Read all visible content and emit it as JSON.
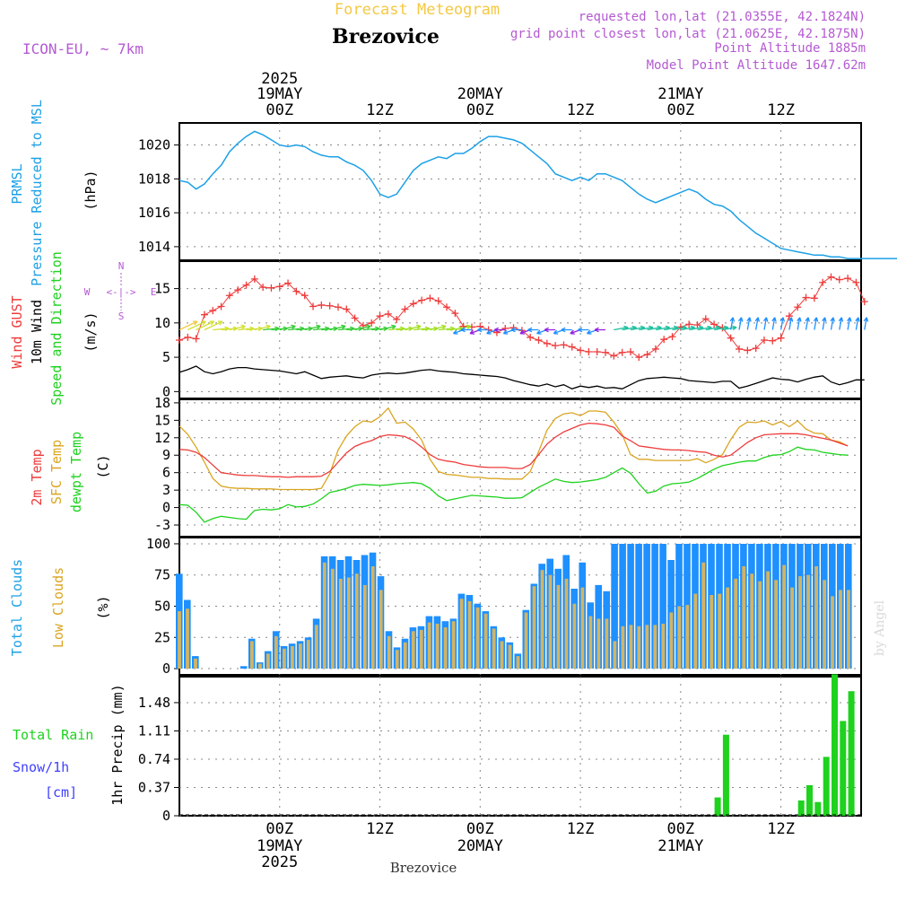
{
  "header": {
    "title": "Forecast Meteogram",
    "location": "Brezovice",
    "model": "ICON-EU, ~ 7km",
    "requested": "requested lon,lat (21.0355E, 42.1824N)",
    "gridpoint": "grid point closest lon,lat (21.0625E, 42.1875N)",
    "point_alt": "Point Altitude 1885m",
    "model_alt": "Model Point Altitude 1647.62m",
    "footer_location": "Brezovice",
    "watermark": "by Angel"
  },
  "colors": {
    "pressure": "#1ca0e6",
    "gust": "#ee3b3b",
    "wind": "#000000",
    "t2m": "#ee3b3b",
    "sfc": "#daa520",
    "dewpt": "#1ed21e",
    "total_clouds": "#1e90ff",
    "low_clouds": "#d2b464",
    "rain": "#1ed21e",
    "snow": "#4040ff",
    "label_purple": "#b45ad2"
  },
  "time_axis": {
    "top": [
      {
        "line1": "2025",
        "line2": "19MAY",
        "line3": "00Z",
        "h": 18
      },
      {
        "line1": "",
        "line2": "",
        "line3": "12Z",
        "h": 30
      },
      {
        "line1": "",
        "line2": "20MAY",
        "line3": "00Z",
        "h": 42
      },
      {
        "line1": "",
        "line2": "",
        "line3": "12Z",
        "h": 54
      },
      {
        "line1": "",
        "line2": "21MAY",
        "line3": "00Z",
        "h": 66
      },
      {
        "line1": "",
        "line2": "",
        "line3": "12Z",
        "h": 78
      }
    ],
    "bottom": [
      {
        "line1": "00Z",
        "line2": "19MAY",
        "line3": "2025",
        "h": 18
      },
      {
        "line1": "12Z",
        "line2": "",
        "line3": "",
        "h": 30
      },
      {
        "line1": "00Z",
        "line2": "20MAY",
        "line3": "",
        "h": 42
      },
      {
        "line1": "12Z",
        "line2": "",
        "line3": "",
        "h": 54
      },
      {
        "line1": "00Z",
        "line2": "21MAY",
        "line3": "",
        "h": 66
      },
      {
        "line1": "12Z",
        "line2": "",
        "line3": "",
        "h": 78
      }
    ]
  },
  "panels": {
    "pressure": {
      "label1": "PRMSL",
      "label2": "Pressure Reduced to MSL",
      "unit": "(hPa)"
    },
    "wind": {
      "label1": "Wind GUST",
      "label2": "10m Wind",
      "label3": "Speed and Direction",
      "unit": "(m/s)",
      "compass_n": "N",
      "compass_s": "S",
      "compass_w": "W",
      "compass_e": "E",
      "compass_mid": "<-|->"
    },
    "temp": {
      "label1": "2m Temp",
      "label2": "SFC Temp",
      "label3": "dewpt Temp",
      "unit": "(C)"
    },
    "clouds": {
      "label1": "Total Clouds",
      "label2": "Low Clouds",
      "unit": "(%)"
    },
    "precip": {
      "label1": "Total  Rain",
      "label2": "Snow/1h",
      "label3": "[cm]",
      "unit": "1hr Precip (mm)"
    }
  },
  "chart_data": [
    {
      "type": "line",
      "series": [
        {
          "name": "PRMSL",
          "x": [
            0,
            1,
            2,
            3,
            4,
            5,
            6,
            7,
            8,
            9,
            10,
            11,
            12,
            13,
            14,
            15,
            16,
            17,
            18,
            19,
            20,
            21,
            22,
            23,
            24,
            25,
            26,
            27,
            28,
            29,
            30,
            31,
            32,
            33,
            34,
            35,
            36,
            37,
            38,
            39,
            40,
            41,
            42,
            43,
            44,
            45,
            46,
            47,
            48,
            49,
            50,
            51,
            52,
            53,
            54,
            55,
            56,
            57,
            58,
            59,
            60,
            61,
            62,
            63,
            64,
            65,
            66,
            67,
            68,
            69,
            70,
            71,
            72,
            73,
            74,
            75,
            76,
            77,
            78,
            79,
            80,
            81,
            82,
            83,
            84,
            85,
            86
          ],
          "values": [
            1017.9,
            1017.8,
            1017.4,
            1017.7,
            1018.3,
            1018.8,
            1019.6,
            1020.1,
            1020.5,
            1020.8,
            1020.6,
            1020.3,
            1020.0,
            1019.9,
            1020.0,
            1019.9,
            1019.6,
            1019.4,
            1019.3,
            1019.3,
            1019.0,
            1018.8,
            1018.5,
            1017.9,
            1017.1,
            1016.9,
            1017.1,
            1017.8,
            1018.5,
            1018.9,
            1019.1,
            1019.3,
            1019.2,
            1019.5,
            1019.5,
            1019.8,
            1020.2,
            1020.5,
            1020.5,
            1020.4,
            1020.3,
            1020.1,
            1019.7,
            1019.3,
            1018.9,
            1018.3,
            1018.1,
            1017.9,
            1018.1,
            1017.9,
            1018.3,
            1018.3,
            1018.1,
            1017.9,
            1017.5,
            1017.1,
            1016.8,
            1016.6,
            1016.8,
            1017.0,
            1017.2,
            1017.4,
            1017.2,
            1016.8,
            1016.5,
            1016.4,
            1016.1,
            1015.6,
            1015.2,
            1014.8,
            1014.5,
            1014.2,
            1013.9,
            1013.8,
            1013.7,
            1013.6,
            1013.5,
            1013.5,
            1013.4,
            1013.4,
            1013.3,
            1013.3,
            1013.3,
            1013.3,
            1013.3,
            1013.3,
            1013.3
          ]
        }
      ],
      "ylabel": "(hPa)",
      "yticks": [
        1014,
        1016,
        1018,
        1020
      ],
      "ylim": [
        1013.2,
        1021.3
      ]
    },
    {
      "type": "line",
      "series": [
        {
          "name": "Wind GUST",
          "values": [
            7.5,
            7.9,
            7.7,
            11.2,
            11.8,
            12.4,
            14.0,
            14.8,
            15.5,
            16.4,
            15.2,
            15.1,
            15.3,
            15.8,
            14.6,
            14.0,
            12.4,
            12.6,
            12.5,
            12.3,
            12.0,
            10.7,
            9.6,
            10.0,
            11.0,
            11.3,
            10.5,
            12.0,
            12.8,
            13.3,
            13.6,
            13.2,
            12.3,
            11.4,
            9.5,
            9.4,
            9.5,
            9.0,
            8.6,
            9.2,
            9.3,
            8.9,
            7.9,
            7.5,
            7.0,
            6.7,
            6.8,
            6.5,
            6.0,
            5.8,
            5.8,
            5.7,
            5.2,
            5.7,
            5.8,
            5.0,
            5.4,
            6.2,
            7.6,
            8.0,
            9.4,
            9.8,
            9.7,
            10.6,
            9.8,
            9.3,
            7.8,
            6.2,
            6.0,
            6.3,
            7.5,
            7.4,
            7.8,
            11.0,
            12.3,
            13.7,
            13.6,
            15.9,
            16.7,
            16.3,
            16.5,
            15.9,
            13.1
          ]
        },
        {
          "name": "10m Wind",
          "values": [
            2.8,
            3.2,
            3.7,
            2.9,
            2.6,
            2.9,
            3.3,
            3.5,
            3.5,
            3.3,
            3.2,
            3.1,
            3.0,
            2.8,
            2.6,
            2.9,
            2.4,
            1.9,
            2.1,
            2.2,
            2.3,
            2.1,
            2.0,
            2.4,
            2.6,
            2.7,
            2.6,
            2.7,
            2.9,
            3.1,
            3.2,
            3.0,
            2.9,
            2.8,
            2.6,
            2.5,
            2.4,
            2.3,
            2.2,
            2.0,
            1.6,
            1.3,
            1.0,
            0.8,
            1.1,
            0.7,
            1.0,
            0.4,
            0.8,
            0.6,
            0.8,
            0.5,
            0.6,
            0.4,
            1.0,
            1.6,
            1.9,
            2.0,
            2.1,
            2.0,
            1.9,
            1.6,
            1.5,
            1.4,
            1.3,
            1.5,
            1.5,
            0.5,
            0.8,
            1.2,
            1.6,
            2.0,
            1.8,
            1.7,
            1.4,
            1.8,
            2.1,
            2.3,
            1.4,
            1.0,
            1.3,
            1.7,
            1.7
          ]
        }
      ],
      "ylabel": "(m/s)",
      "yticks": [
        0,
        5,
        10,
        15
      ],
      "ylim": [
        -1,
        19
      ]
    },
    {
      "type": "line",
      "series": [
        {
          "name": "2m Temp",
          "values": [
            10.0,
            9.9,
            9.5,
            8.6,
            7.3,
            6.0,
            5.8,
            5.6,
            5.5,
            5.5,
            5.4,
            5.3,
            5.3,
            5.2,
            5.3,
            5.3,
            5.3,
            5.4,
            6.2,
            7.8,
            9.4,
            10.5,
            11.1,
            11.5,
            12.2,
            12.5,
            12.4,
            12.2,
            11.5,
            10.4,
            9.1,
            8.3,
            8.0,
            7.8,
            7.4,
            7.2,
            7.0,
            6.9,
            6.9,
            6.9,
            6.7,
            6.7,
            7.4,
            9.1,
            10.9,
            12.1,
            13.0,
            13.6,
            14.2,
            14.5,
            14.4,
            14.2,
            13.8,
            12.3,
            11.5,
            10.6,
            10.4,
            10.2,
            10.0,
            9.9,
            9.9,
            9.8,
            9.6,
            9.5,
            9.0,
            8.7,
            9.0,
            10.1,
            11.2,
            12.0,
            12.5,
            12.6,
            12.7,
            12.7,
            12.7,
            12.5,
            12.2,
            11.9,
            11.6,
            11.1,
            10.6
          ]
        },
        {
          "name": "SFC Temp",
          "values": [
            14.0,
            12.6,
            10.4,
            7.8,
            5.0,
            3.7,
            3.4,
            3.3,
            3.3,
            3.2,
            3.2,
            3.2,
            3.1,
            3.1,
            3.1,
            3.1,
            3.1,
            3.3,
            5.8,
            9.9,
            12.3,
            13.9,
            14.9,
            14.7,
            15.6,
            17.1,
            14.5,
            14.7,
            13.5,
            11.6,
            8.3,
            6.2,
            5.7,
            5.6,
            5.4,
            5.2,
            5.2,
            5.0,
            5.0,
            4.9,
            4.9,
            4.9,
            6.2,
            9.6,
            13.3,
            15.3,
            16.1,
            16.3,
            15.8,
            16.6,
            16.6,
            16.4,
            14.7,
            12.6,
            9.1,
            8.3,
            8.3,
            8.1,
            8.1,
            8.1,
            8.1,
            8.1,
            8.4,
            7.7,
            8.3,
            9.1,
            11.7,
            13.8,
            14.7,
            14.6,
            14.9,
            14.2,
            14.8,
            13.9,
            14.9,
            13.5,
            12.8,
            12.7,
            11.6,
            11.3,
            10.6
          ]
        },
        {
          "name": "dewpt Temp",
          "values": [
            0.5,
            0.4,
            -0.8,
            -2.5,
            -1.9,
            -1.5,
            -1.7,
            -1.9,
            -2.0,
            -0.5,
            -0.3,
            -0.4,
            -0.2,
            0.5,
            0.1,
            0.2,
            0.6,
            1.5,
            2.6,
            2.9,
            3.3,
            3.8,
            4.0,
            3.9,
            3.8,
            3.9,
            4.1,
            4.2,
            4.3,
            4.1,
            3.3,
            2.0,
            1.2,
            1.5,
            1.8,
            2.1,
            2.0,
            1.9,
            1.8,
            1.6,
            1.6,
            1.7,
            2.6,
            3.5,
            4.2,
            4.9,
            4.5,
            4.3,
            4.4,
            4.6,
            4.8,
            5.2,
            6.0,
            6.8,
            5.9,
            4.1,
            2.5,
            2.8,
            3.7,
            4.1,
            4.2,
            4.4,
            5.0,
            5.8,
            6.6,
            7.2,
            7.5,
            7.8,
            8.0,
            8.0,
            8.6,
            9.0,
            9.1,
            9.6,
            10.4,
            10.0,
            9.9,
            9.5,
            9.3,
            9.1,
            9.0
          ]
        }
      ],
      "ylabel": "(C)",
      "yticks": [
        -3,
        0,
        3,
        6,
        9,
        12,
        15,
        18
      ],
      "ylim": [
        -5,
        18.6
      ]
    },
    {
      "type": "bar",
      "series": [
        {
          "name": "Total Clouds",
          "values": [
            76,
            55,
            10,
            0,
            0,
            0,
            0,
            0,
            2,
            24,
            5,
            14,
            30,
            18,
            20,
            22,
            25,
            40,
            90,
            90,
            87,
            90,
            87,
            91,
            93,
            74,
            30,
            17,
            24,
            33,
            34,
            42,
            42,
            38,
            40,
            60,
            59,
            52,
            46,
            34,
            25,
            21,
            12,
            47,
            68,
            84,
            88,
            80,
            91,
            64,
            85,
            53,
            67,
            62,
            100,
            100,
            100,
            100,
            100,
            100,
            100,
            87,
            100,
            100,
            100,
            100,
            100,
            100,
            100,
            100,
            100,
            100,
            100,
            100,
            100,
            100,
            100,
            100,
            100,
            100,
            100,
            100,
            100,
            100
          ]
        },
        {
          "name": "Low Clouds",
          "values": [
            46,
            48,
            8,
            0,
            0,
            0,
            0,
            0,
            0,
            22,
            4,
            12,
            26,
            16,
            18,
            20,
            23,
            35,
            85,
            80,
            72,
            73,
            76,
            67,
            82,
            63,
            26,
            15,
            21,
            30,
            31,
            37,
            36,
            33,
            38,
            56,
            54,
            49,
            44,
            32,
            22,
            19,
            10,
            45,
            66,
            79,
            75,
            67,
            72,
            52,
            65,
            42,
            40,
            40,
            22,
            34,
            35,
            34,
            35,
            35,
            36,
            45,
            50,
            51,
            60,
            85,
            59,
            60,
            65,
            72,
            82,
            76,
            70,
            78,
            71,
            83,
            65,
            74,
            75,
            82,
            71,
            58,
            63,
            63
          ]
        }
      ],
      "ylabel": "(%)",
      "yticks": [
        0,
        25,
        50,
        75,
        100
      ],
      "ylim": [
        -5,
        105
      ]
    },
    {
      "type": "bar",
      "series": [
        {
          "name": "1hr Precip",
          "values": [
            0,
            0,
            0,
            0,
            0,
            0,
            0,
            0,
            0,
            0,
            0,
            0,
            0,
            0,
            0,
            0,
            0,
            0,
            0,
            0,
            0,
            0,
            0,
            0,
            0,
            0,
            0,
            0,
            0,
            0,
            0,
            0,
            0,
            0,
            0,
            0,
            0,
            0,
            0,
            0,
            0,
            0,
            0,
            0,
            0,
            0,
            0,
            0,
            0,
            0,
            0,
            0,
            0,
            0,
            0,
            0,
            0,
            0,
            0,
            0,
            0,
            0,
            0,
            0,
            0.24,
            1.06,
            0,
            0,
            0,
            0,
            0,
            0,
            0,
            0,
            0.2,
            0.4,
            0.18,
            0.77,
            1.85,
            1.24,
            1.63
          ]
        }
      ],
      "ylabel": "1hr Precip (mm)",
      "yticks": [
        0,
        0.37,
        0.74,
        1.11,
        1.48
      ],
      "ylim": [
        0,
        1.82
      ]
    }
  ]
}
